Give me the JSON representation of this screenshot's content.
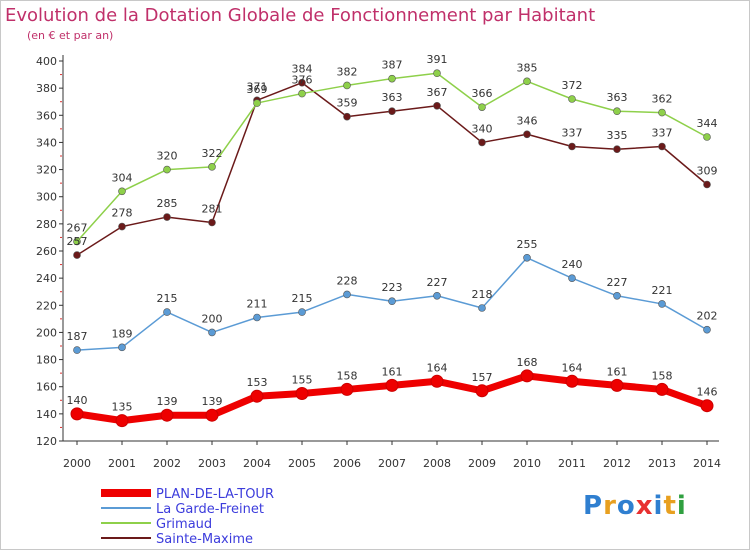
{
  "title": "Evolution de la Dotation Globale de Fonctionnement par Habitant",
  "subtitle": "(en € et par an)",
  "logo": {
    "letters": [
      "P",
      "r",
      "o",
      "x",
      "i",
      "t",
      "i"
    ],
    "colors": [
      "#2f7fd0",
      "#e8a020",
      "#2f7fd0",
      "#e83030",
      "#2f7fd0",
      "#e8a020",
      "#30a040"
    ]
  },
  "chart_data": {
    "type": "line",
    "title": "Evolution de la Dotation Globale de Fonctionnement par Habitant",
    "subtitle": "(en € et par an)",
    "x": [
      "2000",
      "2001",
      "2002",
      "2003",
      "2004",
      "2005",
      "2006",
      "2007",
      "2008",
      "2009",
      "2010",
      "2011",
      "2012",
      "2013",
      "2014"
    ],
    "ylim": [
      120,
      400
    ],
    "yticks": [
      120,
      140,
      160,
      180,
      200,
      220,
      240,
      260,
      280,
      300,
      320,
      340,
      360,
      380,
      400
    ],
    "grid": false,
    "legend_position": "bottom-left",
    "series": [
      {
        "name": "PLAN-DE-LA-TOUR",
        "color": "#ee0000",
        "values": [
          140,
          135,
          139,
          139,
          153,
          155,
          158,
          161,
          164,
          157,
          168,
          164,
          161,
          158,
          146
        ]
      },
      {
        "name": "La Garde-Freinet",
        "color": "#5b9bd5",
        "values": [
          187,
          189,
          215,
          200,
          211,
          215,
          228,
          223,
          227,
          218,
          255,
          240,
          227,
          221,
          202
        ]
      },
      {
        "name": "Grimaud",
        "color": "#8ed04a",
        "values": [
          267,
          304,
          320,
          322,
          369,
          376,
          382,
          387,
          391,
          366,
          385,
          372,
          363,
          362,
          344
        ]
      },
      {
        "name": "Sainte-Maxime",
        "color": "#6b1a1a",
        "values": [
          257,
          278,
          285,
          281,
          371,
          384,
          359,
          363,
          367,
          340,
          346,
          337,
          335,
          337,
          309
        ]
      }
    ]
  }
}
